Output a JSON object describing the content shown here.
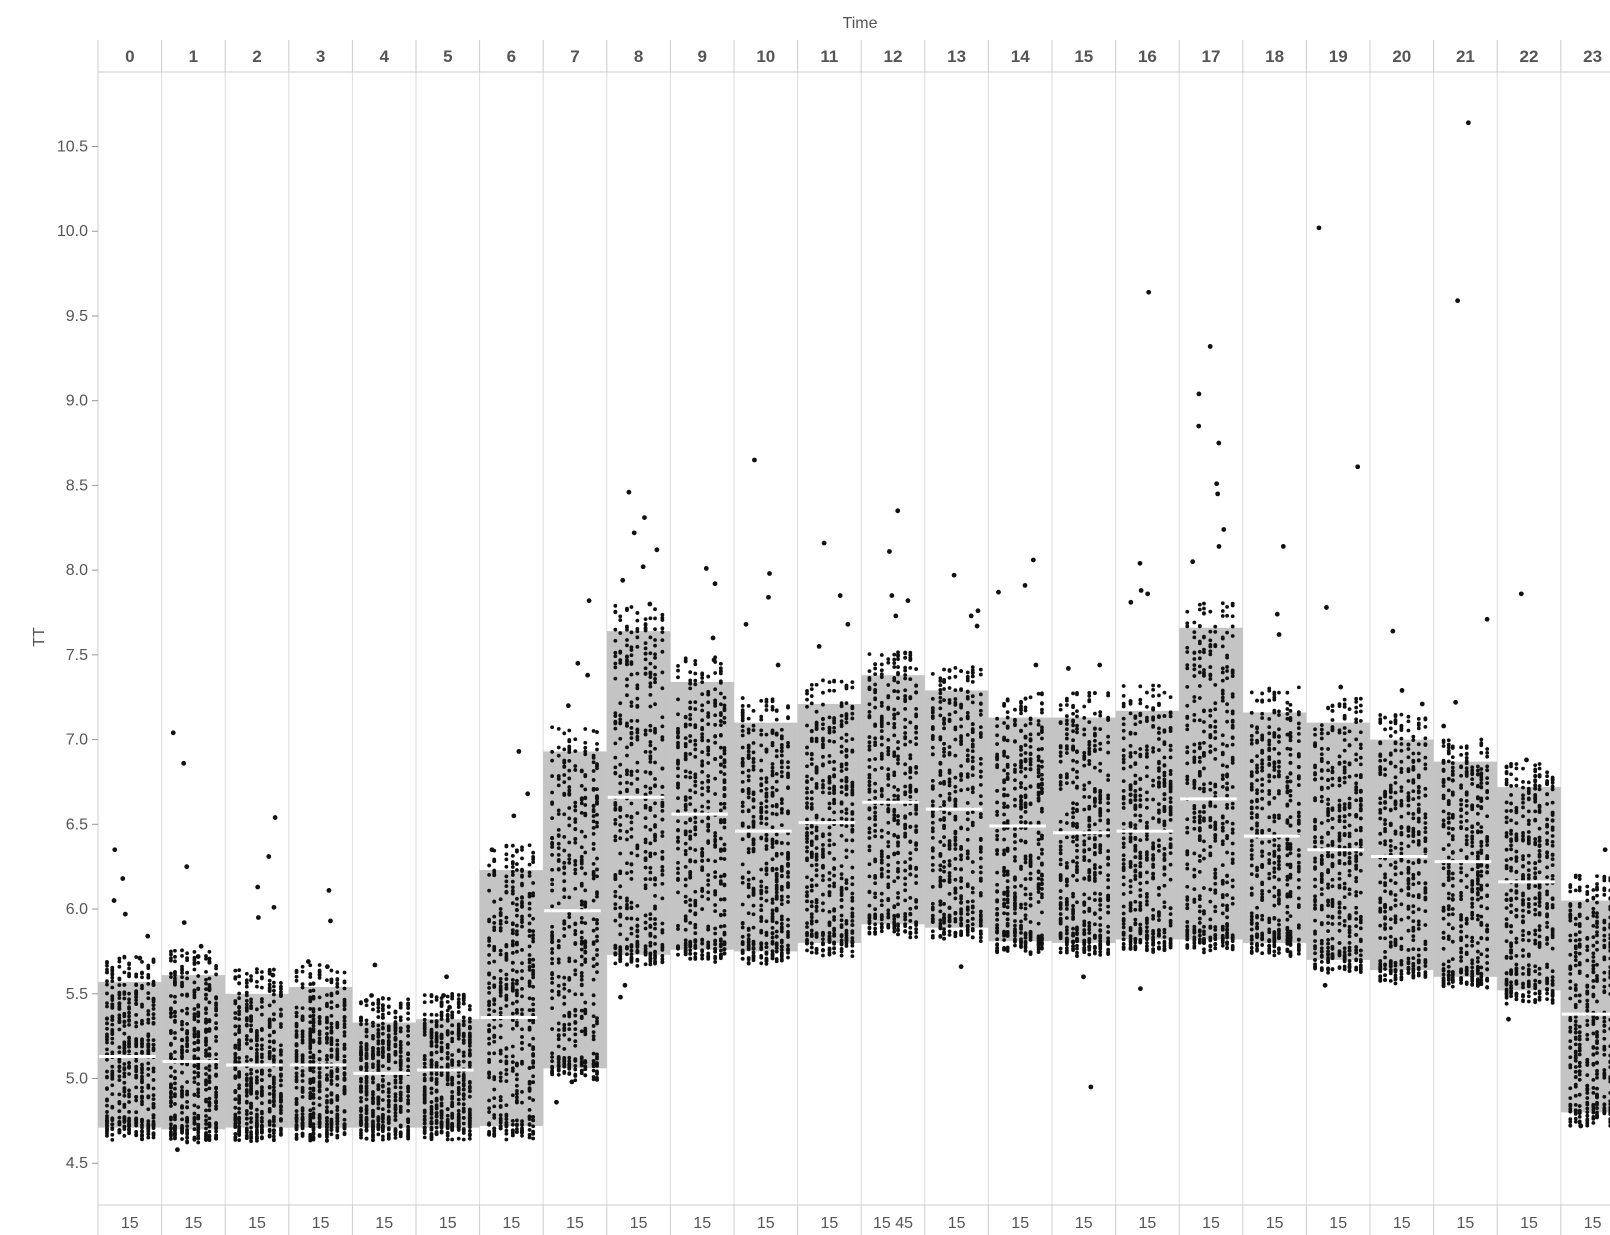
{
  "chart_data": {
    "type": "scatter",
    "subtype": "jittered strip plot with shaded IQR band and median line per hour column",
    "title": "Time",
    "ylabel": "TT",
    "xlabel": "",
    "ylim": [
      4.25,
      10.95
    ],
    "yticks": [
      4.5,
      5.0,
      5.5,
      6.0,
      6.5,
      7.0,
      7.5,
      8.0,
      8.5,
      9.0,
      9.5,
      10.0,
      10.5
    ],
    "grid": {
      "vertical": true,
      "horizontal": false
    },
    "columns": [
      "0",
      "1",
      "2",
      "3",
      "4",
      "5",
      "6",
      "7",
      "8",
      "9",
      "10",
      "11",
      "12",
      "13",
      "14",
      "15",
      "16",
      "17",
      "18",
      "19",
      "20",
      "21",
      "22",
      "23"
    ],
    "bottom_labels": [
      "15",
      "15",
      "15",
      "15",
      "15",
      "15",
      "15",
      "15",
      "15",
      "15",
      "15",
      "15",
      "15 45",
      "15",
      "15",
      "15",
      "15",
      "15",
      "15",
      "15",
      "15",
      "15",
      "15",
      "15"
    ],
    "bands": [
      {
        "col": "0",
        "q1": 4.71,
        "median": 5.13,
        "q3": 5.57
      },
      {
        "col": "1",
        "q1": 4.7,
        "median": 5.1,
        "q3": 5.61
      },
      {
        "col": "2",
        "q1": 4.71,
        "median": 5.08,
        "q3": 5.5
      },
      {
        "col": "3",
        "q1": 4.71,
        "median": 5.08,
        "q3": 5.54
      },
      {
        "col": "4",
        "q1": 4.71,
        "median": 5.03,
        "q3": 5.33
      },
      {
        "col": "5",
        "q1": 4.71,
        "median": 5.05,
        "q3": 5.35
      },
      {
        "col": "6",
        "q1": 4.72,
        "median": 5.36,
        "q3": 6.23
      },
      {
        "col": "7",
        "q1": 5.06,
        "median": 5.99,
        "q3": 6.93
      },
      {
        "col": "8",
        "q1": 5.73,
        "median": 6.66,
        "q3": 7.64
      },
      {
        "col": "9",
        "q1": 5.76,
        "median": 6.56,
        "q3": 7.34
      },
      {
        "col": "10",
        "q1": 5.75,
        "median": 6.46,
        "q3": 7.1
      },
      {
        "col": "11",
        "q1": 5.8,
        "median": 6.51,
        "q3": 7.21
      },
      {
        "col": "12",
        "q1": 5.91,
        "median": 6.63,
        "q3": 7.38
      },
      {
        "col": "13",
        "q1": 5.89,
        "median": 6.59,
        "q3": 7.29
      },
      {
        "col": "14",
        "q1": 5.81,
        "median": 6.49,
        "q3": 7.13
      },
      {
        "col": "15",
        "q1": 5.8,
        "median": 6.45,
        "q3": 7.13
      },
      {
        "col": "16",
        "q1": 5.82,
        "median": 6.46,
        "q3": 7.17
      },
      {
        "col": "17",
        "q1": 5.82,
        "median": 6.65,
        "q3": 7.66
      },
      {
        "col": "18",
        "q1": 5.8,
        "median": 6.43,
        "q3": 7.16
      },
      {
        "col": "19",
        "q1": 5.7,
        "median": 6.35,
        "q3": 7.1
      },
      {
        "col": "20",
        "q1": 5.64,
        "median": 6.31,
        "q3": 7.0
      },
      {
        "col": "21",
        "q1": 5.6,
        "median": 6.28,
        "q3": 6.87
      },
      {
        "col": "22",
        "q1": 5.52,
        "median": 6.16,
        "q3": 6.72
      },
      {
        "col": "23",
        "q1": 4.8,
        "median": 5.38,
        "q3": 6.05
      }
    ],
    "outliers": [
      {
        "col": "0",
        "y": 6.35
      },
      {
        "col": "0",
        "y": 6.18
      },
      {
        "col": "0",
        "y": 6.05
      },
      {
        "col": "0",
        "y": 5.97
      },
      {
        "col": "0",
        "y": 5.84
      },
      {
        "col": "0",
        "y": 5.71
      },
      {
        "col": "1",
        "y": 7.04
      },
      {
        "col": "1",
        "y": 6.86
      },
      {
        "col": "1",
        "y": 6.25
      },
      {
        "col": "1",
        "y": 5.92
      },
      {
        "col": "1",
        "y": 5.78
      },
      {
        "col": "1",
        "y": 5.72
      },
      {
        "col": "1",
        "y": 4.58
      },
      {
        "col": "2",
        "y": 6.54
      },
      {
        "col": "2",
        "y": 6.31
      },
      {
        "col": "2",
        "y": 6.13
      },
      {
        "col": "2",
        "y": 6.01
      },
      {
        "col": "2",
        "y": 5.95
      },
      {
        "col": "2",
        "y": 5.61
      },
      {
        "col": "3",
        "y": 6.11
      },
      {
        "col": "3",
        "y": 5.93
      },
      {
        "col": "3",
        "y": 5.69
      },
      {
        "col": "3",
        "y": 5.66
      },
      {
        "col": "4",
        "y": 5.67
      },
      {
        "col": "4",
        "y": 5.49
      },
      {
        "col": "4",
        "y": 5.46
      },
      {
        "col": "5",
        "y": 5.6
      },
      {
        "col": "5",
        "y": 5.49
      },
      {
        "col": "5",
        "y": 5.42
      },
      {
        "col": "6",
        "y": 6.93
      },
      {
        "col": "6",
        "y": 6.68
      },
      {
        "col": "6",
        "y": 6.55
      },
      {
        "col": "6",
        "y": 6.35
      },
      {
        "col": "7",
        "y": 7.82
      },
      {
        "col": "7",
        "y": 7.45
      },
      {
        "col": "7",
        "y": 7.38
      },
      {
        "col": "7",
        "y": 7.2
      },
      {
        "col": "7",
        "y": 4.98
      },
      {
        "col": "7",
        "y": 4.86
      },
      {
        "col": "8",
        "y": 8.46
      },
      {
        "col": "8",
        "y": 8.31
      },
      {
        "col": "8",
        "y": 8.22
      },
      {
        "col": "8",
        "y": 8.12
      },
      {
        "col": "8",
        "y": 8.02
      },
      {
        "col": "8",
        "y": 7.94
      },
      {
        "col": "8",
        "y": 7.8
      },
      {
        "col": "8",
        "y": 5.55
      },
      {
        "col": "8",
        "y": 5.48
      },
      {
        "col": "9",
        "y": 8.01
      },
      {
        "col": "9",
        "y": 7.92
      },
      {
        "col": "9",
        "y": 7.6
      },
      {
        "col": "9",
        "y": 7.47
      },
      {
        "col": "10",
        "y": 8.65
      },
      {
        "col": "10",
        "y": 7.98
      },
      {
        "col": "10",
        "y": 7.84
      },
      {
        "col": "10",
        "y": 7.68
      },
      {
        "col": "10",
        "y": 7.44
      },
      {
        "col": "11",
        "y": 8.16
      },
      {
        "col": "11",
        "y": 7.85
      },
      {
        "col": "11",
        "y": 7.68
      },
      {
        "col": "11",
        "y": 7.55
      },
      {
        "col": "12",
        "y": 8.35
      },
      {
        "col": "12",
        "y": 8.11
      },
      {
        "col": "12",
        "y": 7.85
      },
      {
        "col": "12",
        "y": 7.82
      },
      {
        "col": "12",
        "y": 7.73
      },
      {
        "col": "13",
        "y": 7.97
      },
      {
        "col": "13",
        "y": 7.76
      },
      {
        "col": "13",
        "y": 7.73
      },
      {
        "col": "13",
        "y": 7.67
      },
      {
        "col": "13",
        "y": 5.66
      },
      {
        "col": "14",
        "y": 8.06
      },
      {
        "col": "14",
        "y": 7.91
      },
      {
        "col": "14",
        "y": 7.87
      },
      {
        "col": "14",
        "y": 7.44
      },
      {
        "col": "15",
        "y": 7.44
      },
      {
        "col": "15",
        "y": 7.42
      },
      {
        "col": "15",
        "y": 5.6
      },
      {
        "col": "15",
        "y": 4.95
      },
      {
        "col": "16",
        "y": 9.64
      },
      {
        "col": "16",
        "y": 8.04
      },
      {
        "col": "16",
        "y": 7.88
      },
      {
        "col": "16",
        "y": 7.86
      },
      {
        "col": "16",
        "y": 7.81
      },
      {
        "col": "16",
        "y": 5.53
      },
      {
        "col": "17",
        "y": 9.32
      },
      {
        "col": "17",
        "y": 9.04
      },
      {
        "col": "17",
        "y": 8.85
      },
      {
        "col": "17",
        "y": 8.75
      },
      {
        "col": "17",
        "y": 8.51
      },
      {
        "col": "17",
        "y": 8.45
      },
      {
        "col": "17",
        "y": 8.24
      },
      {
        "col": "17",
        "y": 8.14
      },
      {
        "col": "17",
        "y": 8.05
      },
      {
        "col": "18",
        "y": 8.14
      },
      {
        "col": "18",
        "y": 7.74
      },
      {
        "col": "18",
        "y": 7.62
      },
      {
        "col": "19",
        "y": 10.02
      },
      {
        "col": "19",
        "y": 8.61
      },
      {
        "col": "19",
        "y": 7.78
      },
      {
        "col": "19",
        "y": 7.31
      },
      {
        "col": "19",
        "y": 5.55
      },
      {
        "col": "20",
        "y": 7.64
      },
      {
        "col": "20",
        "y": 7.29
      },
      {
        "col": "20",
        "y": 7.21
      },
      {
        "col": "21",
        "y": 10.64
      },
      {
        "col": "21",
        "y": 9.59
      },
      {
        "col": "21",
        "y": 7.71
      },
      {
        "col": "21",
        "y": 7.22
      },
      {
        "col": "21",
        "y": 7.08
      },
      {
        "col": "22",
        "y": 7.86
      },
      {
        "col": "22",
        "y": 6.88
      },
      {
        "col": "22",
        "y": 5.35
      },
      {
        "col": "23",
        "y": 6.35
      },
      {
        "col": "23",
        "y": 4.72
      }
    ]
  }
}
